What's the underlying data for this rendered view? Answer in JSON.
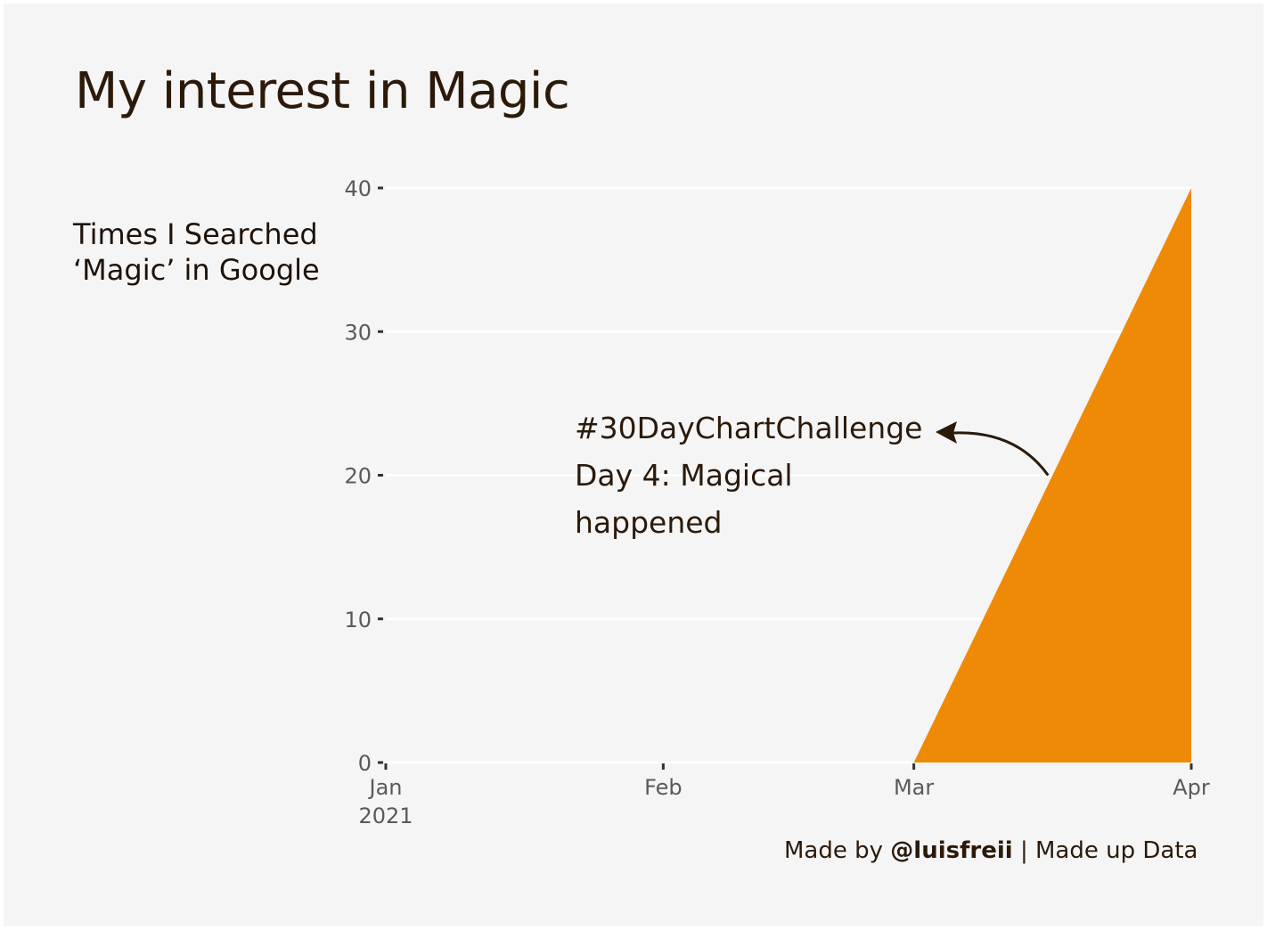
{
  "chart_data": {
    "type": "area",
    "title": "My interest in Magic",
    "ylabel_lines": [
      "Times I Searched",
      "‘Magic’ in Google"
    ],
    "xlabel": "",
    "x": [
      "2021-01-01",
      "2021-02-01",
      "2021-03-01",
      "2021-04-01"
    ],
    "series": [
      {
        "values": [
          0,
          0,
          0,
          40
        ],
        "color": "#ef8a07"
      }
    ],
    "x_ticks": [
      {
        "label": "Jan",
        "sub": "2021"
      },
      {
        "label": "Feb"
      },
      {
        "label": "Mar"
      },
      {
        "label": "Apr"
      }
    ],
    "y_ticks": [
      0,
      10,
      20,
      30,
      40
    ],
    "ylim": [
      0,
      40
    ],
    "grid": "horizontal",
    "annotation": {
      "lines": [
        "#30DayChartChallenge",
        "Day 4: Magical",
        "happened"
      ],
      "arrow_target": {
        "x": "2021-03-16",
        "y": 20
      }
    },
    "caption": {
      "prefix": "Made by ",
      "handle": "@luisfreii",
      "suffix": " | Made up Data"
    }
  },
  "colors": {
    "background": "#f5f5f5",
    "fill": "#ef8a07",
    "text": "#2b1a0a",
    "grid": "#ffffff"
  }
}
